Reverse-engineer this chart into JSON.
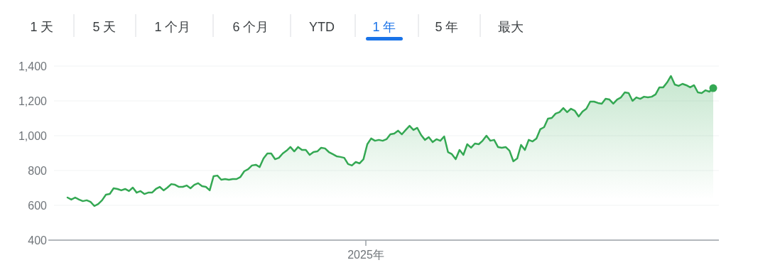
{
  "chart_data": {
    "type": "area",
    "annotations": [
      "1 天",
      "5 天",
      "1 个月",
      "6 个月",
      "YTD",
      "1 年",
      "5 年",
      "最大",
      "2025年"
    ],
    "categories": [
      null,
      null,
      null,
      null,
      null,
      null,
      null,
      null,
      null,
      null,
      null,
      null,
      null,
      null,
      null,
      null,
      null,
      null,
      null,
      null,
      null,
      null,
      null,
      null,
      null,
      null,
      null,
      null,
      null,
      null,
      null,
      null,
      null,
      null,
      null,
      null,
      null,
      null,
      null,
      null,
      null,
      null,
      null,
      null,
      null,
      null,
      null,
      null,
      null,
      null,
      null,
      null,
      null,
      null,
      null,
      null,
      null,
      null,
      null,
      null,
      null,
      null,
      null,
      null,
      null,
      null,
      null,
      null,
      null,
      null,
      null,
      null,
      null,
      null,
      null,
      null,
      null,
      null,
      null,
      null,
      null,
      null,
      null,
      null,
      null,
      null,
      null,
      null,
      null,
      null,
      null,
      null,
      null,
      null,
      null,
      null,
      null,
      null,
      null,
      null,
      null,
      null,
      null,
      null,
      null,
      null,
      null,
      null,
      null,
      null,
      null,
      null,
      null,
      null,
      null,
      null,
      null,
      null,
      null,
      null,
      null,
      null,
      null,
      null,
      null,
      null,
      null,
      null,
      null,
      null,
      null,
      null,
      null,
      null,
      null,
      null,
      null,
      null,
      null,
      null,
      null,
      null,
      null,
      null,
      null,
      null,
      null,
      null,
      null,
      null,
      null,
      null,
      null,
      null,
      null,
      null,
      null,
      null,
      null,
      null,
      null,
      null,
      null,
      null,
      null,
      null,
      null,
      null,
      null
    ],
    "series": [
      {
        "color": "#34a853",
        "values": [
          645,
          633,
          645,
          633,
          624,
          629,
          620,
          596,
          608,
          629,
          661,
          665,
          698,
          694,
          686,
          694,
          682,
          702,
          673,
          682,
          665,
          673,
          673,
          694,
          706,
          686,
          702,
          722,
          718,
          706,
          706,
          714,
          698,
          718,
          727,
          710,
          706,
          686,
          767,
          771,
          747,
          751,
          747,
          751,
          751,
          763,
          796,
          808,
          829,
          833,
          820,
          869,
          898,
          898,
          865,
          873,
          898,
          914,
          935,
          910,
          935,
          918,
          918,
          890,
          906,
          910,
          931,
          927,
          906,
          894,
          882,
          878,
          873,
          837,
          829,
          849,
          841,
          865,
          951,
          984,
          971,
          976,
          971,
          980,
          1008,
          1012,
          1029,
          1008,
          1033,
          1057,
          1033,
          1045,
          1004,
          976,
          992,
          963,
          980,
          971,
          996,
          906,
          894,
          865,
          918,
          890,
          951,
          931,
          955,
          951,
          971,
          1000,
          971,
          976,
          935,
          931,
          935,
          914,
          853,
          869,
          947,
          918,
          976,
          967,
          984,
          1037,
          1049,
          1098,
          1102,
          1127,
          1135,
          1159,
          1135,
          1155,
          1143,
          1110,
          1139,
          1155,
          1196,
          1196,
          1188,
          1184,
          1212,
          1208,
          1184,
          1208,
          1220,
          1249,
          1245,
          1200,
          1220,
          1212,
          1224,
          1220,
          1224,
          1237,
          1278,
          1278,
          1306,
          1343,
          1294,
          1286,
          1298,
          1290,
          1278,
          1290,
          1249,
          1245,
          1261,
          1253,
          1273
        ]
      }
    ],
    "ylim": [
      400,
      1400
    ],
    "yticks": [
      {
        "value": 400,
        "label": "400"
      },
      {
        "value": 600,
        "label": "600"
      },
      {
        "value": 800,
        "label": "800"
      },
      {
        "value": 1000,
        "label": "1,000"
      },
      {
        "value": 1200,
        "label": "1,200"
      },
      {
        "value": 1400,
        "label": "1,400"
      }
    ],
    "grid": "y"
  }
}
